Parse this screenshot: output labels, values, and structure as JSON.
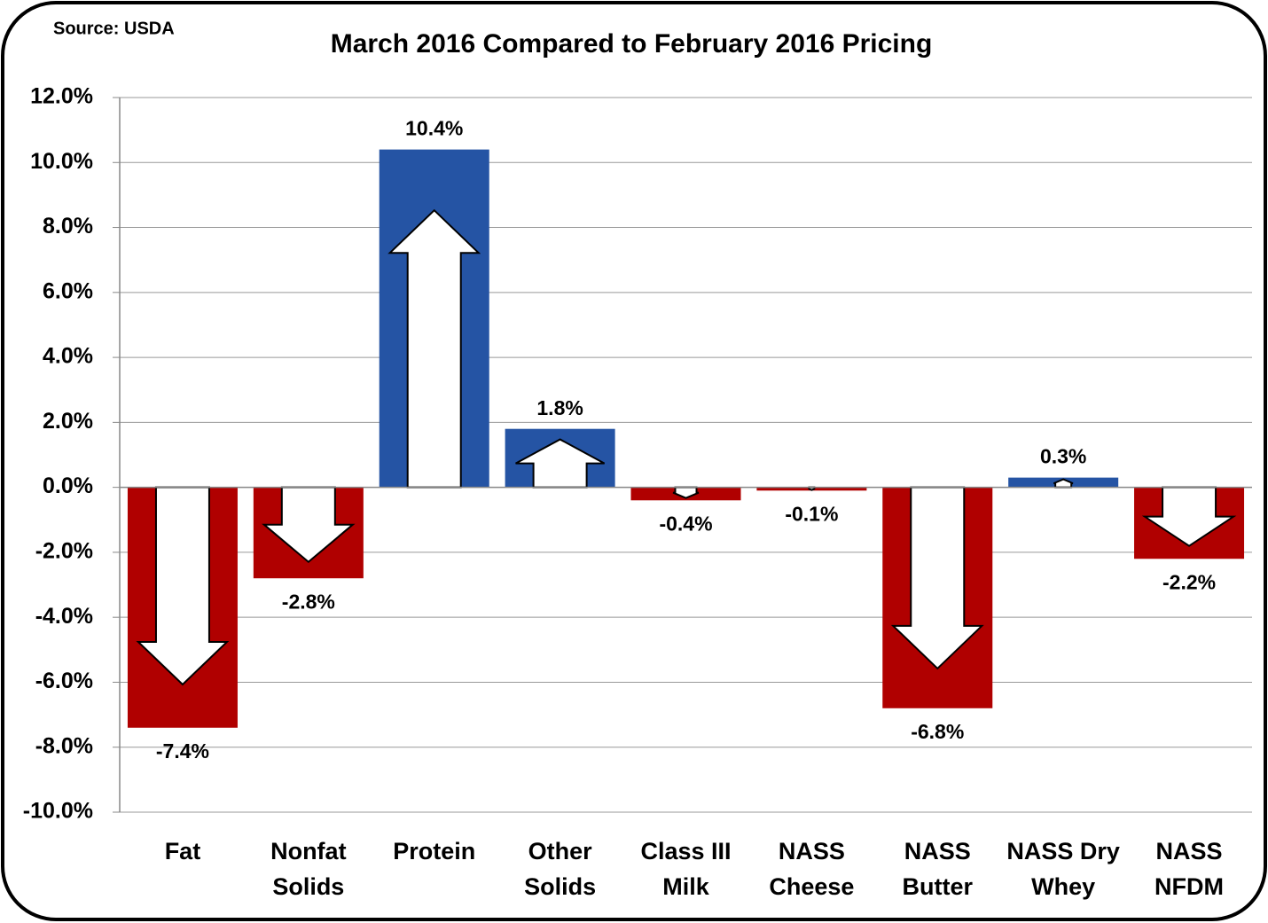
{
  "chart_data": {
    "type": "bar",
    "title": "March 2016 Compared to February 2016 Pricing",
    "source": "Source: USDA",
    "categories": [
      "Fat",
      "Nonfat Solids",
      "Protein",
      "Other Solids",
      "Class III Milk",
      "NASS Cheese",
      "NASS Butter",
      "NASS Dry Whey",
      "NASS NFDM"
    ],
    "values": [
      -7.4,
      -2.8,
      10.4,
      1.8,
      -0.4,
      -0.1,
      -6.8,
      0.3,
      -2.2
    ],
    "value_labels": [
      "-7.4%",
      "-2.8%",
      "10.4%",
      "1.8%",
      "-0.4%",
      "-0.1%",
      "-6.8%",
      "0.3%",
      "-2.2%"
    ],
    "colors": [
      "#b00000",
      "#b00000",
      "#2554a4",
      "#2554a4",
      "#b00000",
      "#b00000",
      "#b00000",
      "#2554a4",
      "#b00000"
    ],
    "ylim": [
      -10,
      12
    ],
    "yticks": [
      {
        "value": -10,
        "label": "-10.0%"
      },
      {
        "value": -8,
        "label": "-8.0%"
      },
      {
        "value": -6,
        "label": "-6.0%"
      },
      {
        "value": -4,
        "label": "-4.0%"
      },
      {
        "value": -2,
        "label": "-2.0%"
      },
      {
        "value": 0,
        "label": "0.0%"
      },
      {
        "value": 2,
        "label": "2.0%"
      },
      {
        "value": 4,
        "label": "4.0%"
      },
      {
        "value": 6,
        "label": "6.0%"
      },
      {
        "value": 8,
        "label": "8.0%"
      },
      {
        "value": 10,
        "label": "10.0%"
      },
      {
        "value": 12,
        "label": "12.0%"
      }
    ],
    "grid": true
  }
}
